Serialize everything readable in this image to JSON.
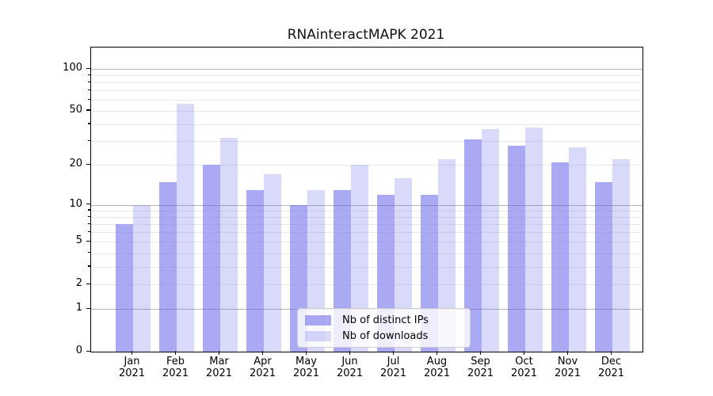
{
  "title": "RNAinteractMAPK 2021",
  "legend": {
    "items": [
      {
        "label": "Nb of distinct IPs",
        "series": "ips"
      },
      {
        "label": "Nb of downloads",
        "series": "downloads"
      }
    ]
  },
  "colors": {
    "ips_bar": "rgba(105,105,235,0.57)",
    "downloads_bar": "rgba(105,105,235,0.25)",
    "major_grid": "#b3b3b3",
    "minor_grid": "#e9e9ec",
    "spine": "#000000",
    "text": "#000000"
  },
  "y_axis": {
    "tick_labels": [
      "0",
      "1",
      "2",
      "5",
      "10",
      "20",
      "50",
      "100"
    ]
  },
  "x_axis": {
    "tick_labels": [
      {
        "month": "Jan",
        "year": "2021"
      },
      {
        "month": "Feb",
        "year": "2021"
      },
      {
        "month": "Mar",
        "year": "2021"
      },
      {
        "month": "Apr",
        "year": "2021"
      },
      {
        "month": "May",
        "year": "2021"
      },
      {
        "month": "Jun",
        "year": "2021"
      },
      {
        "month": "Jul",
        "year": "2021"
      },
      {
        "month": "Aug",
        "year": "2021"
      },
      {
        "month": "Sep",
        "year": "2021"
      },
      {
        "month": "Oct",
        "year": "2021"
      },
      {
        "month": "Nov",
        "year": "2021"
      },
      {
        "month": "Dec",
        "year": "2021"
      }
    ]
  },
  "chart_data": {
    "type": "bar",
    "title": "RNAinteractMAPK 2021",
    "categories": [
      "Jan 2021",
      "Feb 2021",
      "Mar 2021",
      "Apr 2021",
      "May 2021",
      "Jun 2021",
      "Jul 2021",
      "Aug 2021",
      "Sep 2021",
      "Oct 2021",
      "Nov 2021",
      "Dec 2021"
    ],
    "series": [
      {
        "name": "Nb of distinct IPs",
        "values": [
          7,
          15,
          20,
          13,
          10,
          13,
          12,
          12,
          31,
          28,
          21,
          15
        ]
      },
      {
        "name": "Nb of downloads",
        "values": [
          10,
          56,
          32,
          17,
          13,
          20,
          16,
          22,
          37,
          38,
          27,
          22
        ]
      }
    ],
    "xlabel": "",
    "ylabel": "",
    "yscale": "log1p",
    "ylim": [
      0,
      115
    ],
    "yticks": [
      0,
      1,
      2,
      5,
      10,
      20,
      50,
      100
    ],
    "major_gridlines": [
      1,
      10,
      100
    ],
    "minor_gridlines": [
      2,
      3,
      4,
      5,
      6,
      7,
      8,
      9,
      20,
      30,
      40,
      50,
      60,
      70,
      80,
      90
    ],
    "grid": true,
    "legend_position": "lower center"
  }
}
